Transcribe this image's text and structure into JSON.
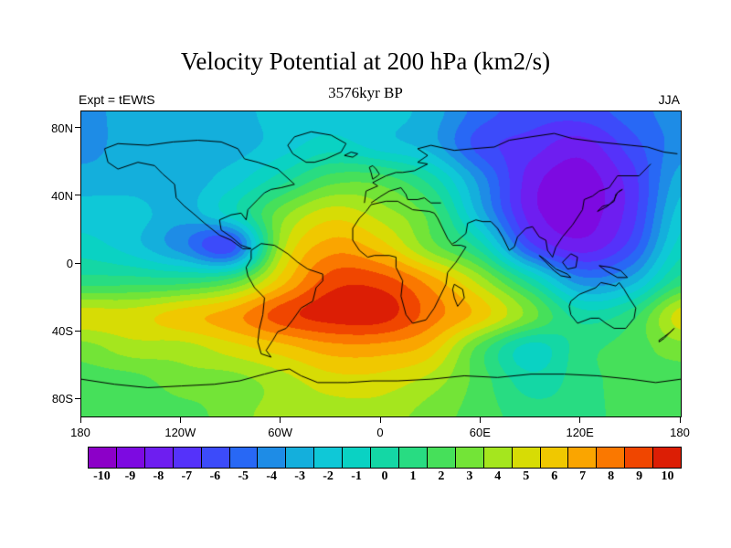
{
  "chart_data": {
    "type": "heatmap",
    "title": "Velocity Potential at 200 hPa (km2/s)",
    "subtitle": "3576kyr BP",
    "experiment_label": "Expt = tEWtS",
    "season_label": "JJA",
    "projection": "cylindrical-equidistant",
    "x_axis": {
      "range": [
        -180,
        180
      ],
      "ticks": [
        {
          "label": "180",
          "value": -180
        },
        {
          "label": "120W",
          "value": -120
        },
        {
          "label": "60W",
          "value": -60
        },
        {
          "label": "0",
          "value": 0
        },
        {
          "label": "60E",
          "value": 60
        },
        {
          "label": "120E",
          "value": 120
        },
        {
          "label": "180",
          "value": 180
        }
      ]
    },
    "y_axis": {
      "range": [
        -90,
        90
      ],
      "ticks": [
        {
          "label": "80N",
          "value": 80
        },
        {
          "label": "40N",
          "value": 40
        },
        {
          "label": "0",
          "value": 0
        },
        {
          "label": "40S",
          "value": -40
        },
        {
          "label": "80S",
          "value": -80
        }
      ]
    },
    "levels": [
      -10,
      -9,
      -8,
      -7,
      -6,
      -5,
      -4,
      -3,
      -2,
      -1,
      0,
      1,
      2,
      3,
      4,
      5,
      6,
      7,
      8,
      9,
      10
    ],
    "colors": [
      "#8C00C8",
      "#7D0AE1",
      "#6E1EF0",
      "#5532FA",
      "#3C4BFA",
      "#2868F5",
      "#1E8CE6",
      "#14AFDC",
      "#0FC8D7",
      "#0AD2C3",
      "#14D7A5",
      "#28DC82",
      "#46E05A",
      "#73E437",
      "#A5E61E",
      "#D7DC05",
      "#F0C800",
      "#FAA500",
      "#FA7800",
      "#F04600",
      "#DC1E05"
    ],
    "grid": {
      "lons": [
        -180,
        -150,
        -120,
        -90,
        -60,
        -30,
        0,
        30,
        60,
        90,
        120,
        150,
        180
      ],
      "lats": [
        90,
        70,
        50,
        30,
        10,
        -10,
        -30,
        -50,
        -70,
        -90
      ],
      "values": [
        [
          -4,
          -3,
          -3,
          -3,
          -2,
          -2,
          -2,
          -3,
          -5,
          -6,
          -6,
          -5,
          -4
        ],
        [
          -4,
          -3,
          -3,
          -3,
          -2,
          -1,
          -2,
          -3,
          -6,
          -7,
          -8,
          -6,
          -4
        ],
        [
          -3,
          -3,
          -3,
          -2,
          0,
          2,
          2,
          0,
          -4,
          -8,
          -9,
          -7,
          -3
        ],
        [
          -2,
          -2,
          -3,
          -1,
          3,
          5,
          4,
          2,
          -3,
          -8,
          -9,
          -7,
          -2
        ],
        [
          -1,
          -2,
          -4,
          -6,
          4,
          7,
          6,
          3,
          0,
          -6,
          -8,
          -6,
          -1
        ],
        [
          1,
          1,
          1,
          2,
          6,
          9,
          9,
          7,
          4,
          0,
          -4,
          -3,
          1
        ],
        [
          5,
          5,
          6,
          7,
          9,
          10,
          10,
          8,
          6,
          3,
          0,
          1,
          5
        ],
        [
          3,
          4,
          4,
          5,
          6,
          7,
          7,
          6,
          2,
          -1,
          1,
          2,
          3
        ],
        [
          2,
          2,
          3,
          3,
          4,
          5,
          5,
          4,
          2,
          0,
          1,
          2,
          2
        ],
        [
          2,
          2,
          2,
          3,
          4,
          4,
          4,
          3,
          2,
          1,
          1,
          2,
          2
        ]
      ]
    },
    "coastlines": [
      [
        [
          -166,
          68
        ],
        [
          -158,
          71
        ],
        [
          -140,
          70
        ],
        [
          -125,
          72
        ],
        [
          -110,
          73
        ],
        [
          -96,
          72
        ],
        [
          -86,
          68
        ],
        [
          -82,
          62
        ],
        [
          -74,
          60
        ],
        [
          -62,
          56
        ],
        [
          -52,
          47
        ],
        [
          -60,
          45
        ],
        [
          -66,
          44
        ],
        [
          -70,
          42
        ],
        [
          -74,
          38
        ],
        [
          -80,
          32
        ],
        [
          -81,
          26
        ],
        [
          -84,
          30
        ],
        [
          -90,
          29
        ],
        [
          -97,
          26
        ],
        [
          -96,
          20
        ],
        [
          -90,
          16
        ],
        [
          -84,
          11
        ],
        [
          -78,
          9
        ],
        [
          -83,
          9
        ],
        [
          -90,
          14
        ],
        [
          -97,
          17
        ],
        [
          -106,
          24
        ],
        [
          -113,
          30
        ],
        [
          -118,
          34
        ],
        [
          -123,
          39
        ],
        [
          -124,
          47
        ],
        [
          -131,
          53
        ],
        [
          -136,
          58
        ],
        [
          -146,
          60
        ],
        [
          -152,
          58
        ],
        [
          -158,
          56
        ],
        [
          -164,
          60
        ],
        [
          -166,
          68
        ]
      ],
      [
        [
          -78,
          8
        ],
        [
          -72,
          12
        ],
        [
          -64,
          11
        ],
        [
          -56,
          6
        ],
        [
          -50,
          1
        ],
        [
          -44,
          -3
        ],
        [
          -35,
          -6
        ],
        [
          -35,
          -10
        ],
        [
          -39,
          -14
        ],
        [
          -41,
          -22
        ],
        [
          -48,
          -26
        ],
        [
          -53,
          -33
        ],
        [
          -57,
          -38
        ],
        [
          -62,
          -40
        ],
        [
          -65,
          -45
        ],
        [
          -69,
          -51
        ],
        [
          -66,
          -55
        ],
        [
          -72,
          -53
        ],
        [
          -74,
          -46
        ],
        [
          -73,
          -38
        ],
        [
          -71,
          -30
        ],
        [
          -70,
          -20
        ],
        [
          -76,
          -14
        ],
        [
          -80,
          -7
        ],
        [
          -81,
          -2
        ],
        [
          -78,
          3
        ],
        [
          -78,
          8
        ]
      ],
      [
        [
          -45,
          60
        ],
        [
          -53,
          65
        ],
        [
          -56,
          70
        ],
        [
          -52,
          75
        ],
        [
          -42,
          78
        ],
        [
          -30,
          76
        ],
        [
          -21,
          71
        ],
        [
          -24,
          66
        ],
        [
          -33,
          62
        ],
        [
          -40,
          60
        ],
        [
          -45,
          60
        ]
      ],
      [
        [
          -6,
          35
        ],
        [
          3,
          37
        ],
        [
          10,
          37
        ],
        [
          19,
          32
        ],
        [
          29,
          31
        ],
        [
          32,
          30
        ],
        [
          34,
          27
        ],
        [
          37,
          21
        ],
        [
          40,
          15
        ],
        [
          43,
          11
        ],
        [
          48,
          11
        ],
        [
          51,
          10
        ],
        [
          45,
          1
        ],
        [
          40,
          -5
        ],
        [
          39,
          -12
        ],
        [
          35,
          -20
        ],
        [
          32,
          -26
        ],
        [
          27,
          -33
        ],
        [
          19,
          -35
        ],
        [
          15,
          -30
        ],
        [
          12,
          -19
        ],
        [
          13,
          -10
        ],
        [
          9,
          -2
        ],
        [
          9,
          4
        ],
        [
          5,
          5
        ],
        [
          -4,
          5
        ],
        [
          -8,
          4
        ],
        [
          -13,
          8
        ],
        [
          -17,
          14
        ],
        [
          -17,
          21
        ],
        [
          -13,
          27
        ],
        [
          -9,
          31
        ],
        [
          -6,
          35
        ]
      ],
      [
        [
          -10,
          36
        ],
        [
          -9,
          43
        ],
        [
          -2,
          46
        ],
        [
          -5,
          48
        ],
        [
          -1,
          50
        ],
        [
          3,
          52
        ],
        [
          9,
          54
        ],
        [
          13,
          54
        ],
        [
          20,
          55
        ],
        [
          28,
          59
        ],
        [
          22,
          60
        ],
        [
          28,
          64
        ],
        [
          22,
          68
        ],
        [
          30,
          70
        ],
        [
          44,
          67
        ],
        [
          55,
          68
        ],
        [
          68,
          69
        ],
        [
          77,
          73
        ],
        [
          90,
          75
        ],
        [
          104,
          77
        ],
        [
          115,
          74
        ],
        [
          130,
          72
        ],
        [
          150,
          70
        ],
        [
          160,
          69
        ],
        [
          170,
          66
        ],
        [
          178,
          65
        ]
      ],
      [
        [
          162,
          59
        ],
        [
          155,
          52
        ],
        [
          142,
          52
        ],
        [
          137,
          45
        ],
        [
          131,
          43
        ],
        [
          127,
          40
        ],
        [
          122,
          38
        ],
        [
          121,
          32
        ],
        [
          115,
          23
        ],
        [
          109,
          16
        ],
        [
          105,
          10
        ],
        [
          103,
          4
        ],
        [
          100,
          8
        ],
        [
          99,
          14
        ],
        [
          95,
          16
        ],
        [
          91,
          22
        ],
        [
          87,
          21
        ],
        [
          82,
          16
        ],
        [
          80,
          10
        ],
        [
          77,
          8
        ],
        [
          73,
          16
        ],
        [
          70,
          21
        ],
        [
          66,
          25
        ],
        [
          61,
          25
        ],
        [
          57,
          26
        ],
        [
          52,
          24
        ],
        [
          51,
          18
        ],
        [
          45,
          13
        ],
        [
          43,
          12
        ]
      ],
      [
        [
          36,
          36
        ],
        [
          30,
          36
        ],
        [
          26,
          39
        ],
        [
          22,
          38
        ],
        [
          16,
          38
        ],
        [
          15,
          41
        ],
        [
          12,
          45
        ],
        [
          5,
          43
        ],
        [
          0,
          40
        ],
        [
          -6,
          36
        ]
      ],
      [
        [
          114,
          -22
        ],
        [
          119,
          -18
        ],
        [
          124,
          -16
        ],
        [
          129,
          -14
        ],
        [
          132,
          -11
        ],
        [
          137,
          -12
        ],
        [
          141,
          -13
        ],
        [
          143,
          -11
        ],
        [
          146,
          -15
        ],
        [
          149,
          -20
        ],
        [
          153,
          -26
        ],
        [
          152,
          -32
        ],
        [
          147,
          -38
        ],
        [
          140,
          -38
        ],
        [
          135,
          -35
        ],
        [
          131,
          -32
        ],
        [
          126,
          -32
        ],
        [
          118,
          -35
        ],
        [
          114,
          -30
        ],
        [
          113,
          -25
        ],
        [
          114,
          -22
        ]
      ],
      [
        [
          -180,
          -68
        ],
        [
          -160,
          -71
        ],
        [
          -140,
          -73
        ],
        [
          -120,
          -72
        ],
        [
          -100,
          -71
        ],
        [
          -85,
          -69
        ],
        [
          -70,
          -65
        ],
        [
          -62,
          -63
        ],
        [
          -55,
          -62
        ],
        [
          -48,
          -66
        ],
        [
          -38,
          -70
        ],
        [
          -20,
          -70
        ],
        [
          -5,
          -69
        ],
        [
          10,
          -69
        ],
        [
          30,
          -68
        ],
        [
          50,
          -66
        ],
        [
          70,
          -67
        ],
        [
          90,
          -65
        ],
        [
          110,
          -65
        ],
        [
          130,
          -66
        ],
        [
          150,
          -68
        ],
        [
          165,
          -70
        ],
        [
          180,
          -68
        ]
      ],
      [
        [
          44,
          -12
        ],
        [
          49,
          -15
        ],
        [
          50,
          -20
        ],
        [
          46,
          -25
        ],
        [
          44,
          -20
        ],
        [
          43,
          -15
        ],
        [
          44,
          -12
        ]
      ],
      [
        [
          109,
          1
        ],
        [
          114,
          6
        ],
        [
          118,
          4
        ],
        [
          117,
          -2
        ],
        [
          112,
          -3
        ],
        [
          109,
          1
        ]
      ],
      [
        [
          131,
          -1
        ],
        [
          138,
          -2
        ],
        [
          144,
          -4
        ],
        [
          148,
          -8
        ],
        [
          142,
          -8
        ],
        [
          135,
          -4
        ],
        [
          131,
          -1
        ]
      ],
      [
        [
          130,
          31
        ],
        [
          133,
          34
        ],
        [
          137,
          35
        ],
        [
          140,
          37
        ],
        [
          141,
          41
        ],
        [
          143,
          43
        ],
        [
          145,
          44
        ],
        [
          142,
          42
        ],
        [
          140,
          38
        ],
        [
          136,
          34
        ],
        [
          132,
          32
        ],
        [
          130,
          31
        ]
      ],
      [
        [
          -5,
          50
        ],
        [
          -2,
          52
        ],
        [
          -1,
          53
        ],
        [
          -3,
          56
        ],
        [
          -5,
          58
        ],
        [
          -7,
          57
        ],
        [
          -6,
          54
        ],
        [
          -5,
          50
        ]
      ],
      [
        [
          95,
          5
        ],
        [
          100,
          0
        ],
        [
          104,
          -4
        ],
        [
          108,
          -7
        ],
        [
          114,
          -8
        ],
        [
          112,
          -6
        ],
        [
          105,
          -3
        ],
        [
          98,
          3
        ],
        [
          95,
          5
        ]
      ],
      [
        [
          -22,
          64
        ],
        [
          -18,
          66
        ],
        [
          -14,
          65
        ],
        [
          -17,
          63
        ],
        [
          -22,
          64
        ]
      ],
      [
        [
          167,
          -45
        ],
        [
          170,
          -43
        ],
        [
          174,
          -40
        ],
        [
          176,
          -38
        ],
        [
          173,
          -41
        ],
        [
          170,
          -44
        ],
        [
          167,
          -46
        ],
        [
          167,
          -45
        ]
      ]
    ]
  }
}
